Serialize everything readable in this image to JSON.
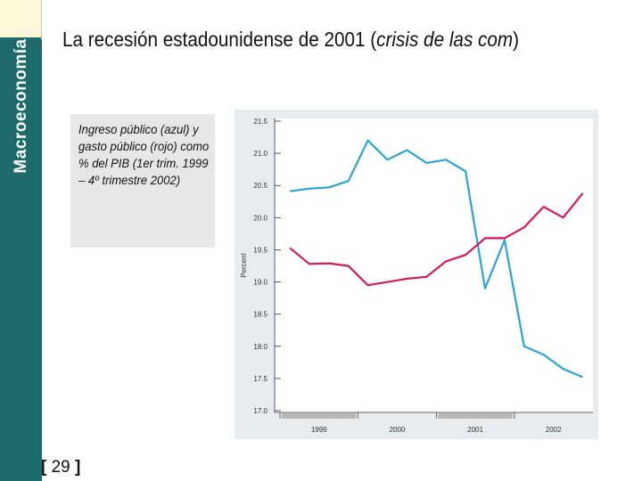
{
  "sidebar": {
    "title": "Macroeconomía"
  },
  "header": {
    "title_prefix": "La recesión estadounidense de 2001 (",
    "title_italic": "crisis de las com",
    "title_suffix": ")"
  },
  "caption": {
    "text": "Ingreso público (azul) y gasto público (rojo) como % del PIB (1er trim. 1999 – 4º trimestre 2002)"
  },
  "footer": {
    "bracket_open": "[",
    "page_number": "29",
    "bracket_close": "]"
  },
  "colors": {
    "revenue": "#2aa4d5",
    "spending": "#d6175d",
    "sidebar": "#1d6b6b"
  },
  "chart_data": {
    "type": "line",
    "title": "",
    "ylabel": "Percent",
    "xlabel": "",
    "y_tick_labels": [
      "21.5",
      "21.0",
      "20.5",
      "20.0",
      "19.5",
      "19.0",
      "18.5",
      "18.0",
      "17.5",
      "17.0"
    ],
    "ylim": [
      17.0,
      21.5
    ],
    "x_labels": [
      "1999",
      "2000",
      "2001",
      "2002"
    ],
    "quarters": [
      "1999Q1",
      "1999Q2",
      "1999Q3",
      "1999Q4",
      "2000Q1",
      "2000Q2",
      "2000Q3",
      "2000Q4",
      "2001Q1",
      "2001Q2",
      "2001Q3",
      "2001Q4",
      "2002Q1",
      "2002Q2",
      "2002Q3",
      "2002Q4"
    ],
    "series": [
      {
        "name": "Ingreso público",
        "color": "#2aa4d5",
        "values": [
          20.41,
          20.45,
          20.47,
          20.57,
          21.2,
          20.9,
          21.05,
          20.85,
          20.9,
          20.72,
          18.9,
          19.65,
          18.0,
          17.87,
          17.65,
          17.52
        ]
      },
      {
        "name": "Gasto público",
        "color": "#d6175d",
        "values": [
          19.53,
          19.28,
          19.29,
          19.25,
          18.95,
          19.0,
          19.05,
          19.08,
          19.32,
          19.42,
          19.68,
          19.68,
          19.85,
          20.17,
          20.0,
          20.38
        ]
      }
    ]
  }
}
